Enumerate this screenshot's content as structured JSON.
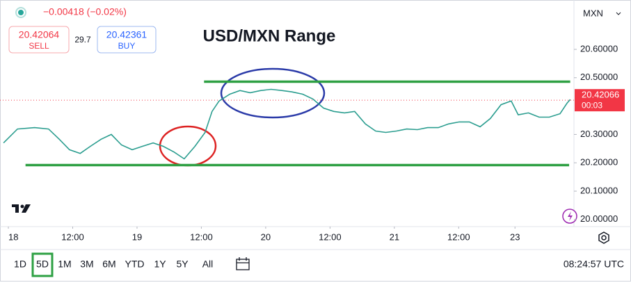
{
  "header": {
    "change": "−0.00418 (−0.02%)",
    "sell_price": "20.42064",
    "sell_label": "SELL",
    "spread": "29.7",
    "buy_price": "20.42361",
    "buy_label": "BUY",
    "currency": "MXN"
  },
  "chart_data": {
    "type": "line",
    "title": "USD/MXN Range",
    "x": [
      -0.9,
      1.7,
      4.9,
      7.5,
      9.5,
      11.4,
      13.4,
      15.3,
      17.3,
      19.2,
      21.1,
      23.1,
      25.0,
      27.0,
      28.9,
      30.9,
      32.8,
      34.8,
      36.7,
      38.0,
      39.3,
      41.3,
      43.2,
      45.1,
      47.1,
      49.0,
      51.0,
      52.9,
      54.9,
      56.8,
      58.8,
      60.7,
      62.7,
      64.6,
      66.6,
      68.5,
      70.4,
      72.4,
      74.3,
      76.3,
      78.2,
      80.2,
      82.1,
      84.1,
      86.0,
      88.0,
      89.9,
      91.9,
      93.8,
      95.1,
      97.0,
      99.0,
      100.9,
      102.9,
      104.2,
      104.8
    ],
    "series": [
      {
        "color": "#2a9d8f",
        "values": [
          20.27,
          20.319,
          20.324,
          20.319,
          20.283,
          20.246,
          20.233,
          20.258,
          20.283,
          20.3,
          20.263,
          20.246,
          20.258,
          20.27,
          20.258,
          20.238,
          20.214,
          20.258,
          20.307,
          20.381,
          20.418,
          20.442,
          20.455,
          20.447,
          20.455,
          20.459,
          20.455,
          20.45,
          20.442,
          20.425,
          20.393,
          20.381,
          20.376,
          20.381,
          20.337,
          20.312,
          20.307,
          20.312,
          20.319,
          20.317,
          20.324,
          20.324,
          20.337,
          20.344,
          20.344,
          20.327,
          20.356,
          20.405,
          20.418,
          20.369,
          20.376,
          20.361,
          20.361,
          20.373,
          20.41,
          20.423
        ]
      }
    ],
    "xlim": [
      -1.56,
      105.5
    ],
    "xticks": [
      {
        "value": 0,
        "label": "18"
      },
      {
        "value": 12,
        "label": "12:00"
      },
      {
        "value": 24,
        "label": "19"
      },
      {
        "value": 36,
        "label": "12:00"
      },
      {
        "value": 48,
        "label": "20"
      },
      {
        "value": 60,
        "label": "12:00"
      },
      {
        "value": 72,
        "label": "21"
      },
      {
        "value": 84,
        "label": "12:00"
      },
      {
        "value": 94.5,
        "label": "23"
      }
    ],
    "ylim": [
      19.975,
      20.774
    ],
    "yticks": [
      {
        "value": 20.0,
        "label": "20.00000"
      },
      {
        "value": 20.1,
        "label": "20.10000"
      },
      {
        "value": 20.2,
        "label": "20.20000"
      },
      {
        "value": 20.3,
        "label": "20.30000"
      },
      {
        "value": 20.5,
        "label": "20.50000"
      },
      {
        "value": 20.6,
        "label": "20.60000"
      }
    ],
    "last_price": 20.42066,
    "countdown": "00:03",
    "levels": [
      {
        "y": 20.486,
        "x": [
          36.5,
          104.8
        ],
        "color": "#2ea043"
      },
      {
        "y": 20.192,
        "x": [
          3.2,
          104.6
        ],
        "color": "#2ea043"
      }
    ]
  },
  "toolbar": {
    "ranges": [
      "1D",
      "5D",
      "1M",
      "3M",
      "6M",
      "YTD",
      "1Y",
      "5Y",
      "All"
    ],
    "active": "5D",
    "time": "08:24:57 UTC"
  }
}
